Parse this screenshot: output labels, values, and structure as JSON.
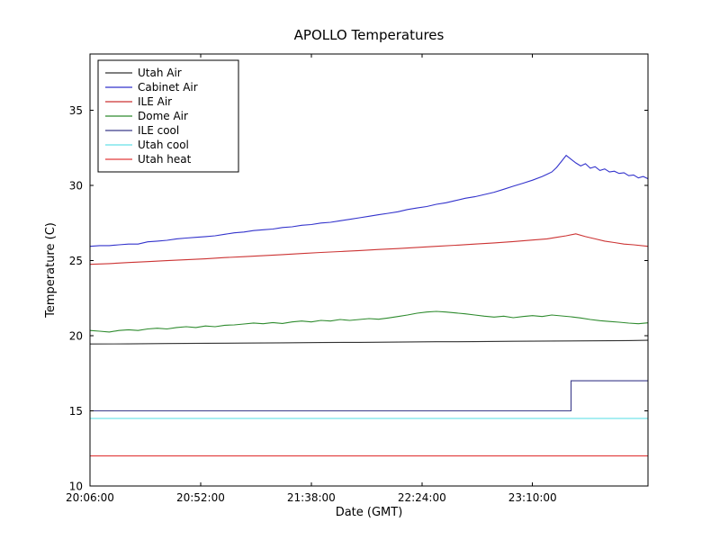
{
  "chart_data": {
    "type": "line",
    "title": "APOLLO Temperatures",
    "xlabel": "Date (GMT)",
    "ylabel": "Temperature (C)",
    "x_tick_labels": [
      "20:06:00",
      "20:52:00",
      "21:38:00",
      "22:24:00",
      "23:10:00"
    ],
    "x_tick_minutes": [
      0,
      46,
      92,
      138,
      184
    ],
    "xlim": [
      0,
      232
    ],
    "x_unit": "minutes since 20:06:00",
    "y_ticks": [
      10,
      15,
      20,
      25,
      30,
      35
    ],
    "ylim": [
      10,
      38.75
    ],
    "grid": false,
    "legend_position": "upper left",
    "background": "#ffffff",
    "frame_color": "#000000",
    "series": [
      {
        "name": "Utah Air",
        "color": "#333333",
        "x": [
          0,
          16,
          32,
          48,
          64,
          80,
          96,
          112,
          128,
          144,
          160,
          176,
          192,
          208,
          224,
          232
        ],
        "y": [
          19.45,
          19.46,
          19.48,
          19.5,
          19.51,
          19.53,
          19.55,
          19.56,
          19.58,
          19.6,
          19.61,
          19.63,
          19.65,
          19.66,
          19.68,
          19.7
        ]
      },
      {
        "name": "Cabinet Air",
        "color": "#3333cc",
        "x": [
          0,
          4,
          8,
          12,
          16,
          20,
          24,
          28,
          32,
          36,
          40,
          44,
          48,
          52,
          56,
          60,
          64,
          68,
          72,
          76,
          80,
          84,
          88,
          92,
          96,
          100,
          104,
          108,
          112,
          116,
          120,
          124,
          128,
          132,
          136,
          140,
          144,
          148,
          152,
          156,
          160,
          164,
          168,
          172,
          176,
          180,
          184,
          188,
          190,
          192,
          194,
          196,
          198,
          200,
          202,
          204,
          206,
          208,
          210,
          212,
          214,
          216,
          218,
          220,
          222,
          224,
          226,
          228,
          230,
          232
        ],
        "y": [
          25.95,
          26.0,
          26.0,
          26.05,
          26.1,
          26.1,
          26.25,
          26.3,
          26.35,
          26.45,
          26.5,
          26.55,
          26.6,
          26.65,
          26.75,
          26.85,
          26.9,
          27.0,
          27.05,
          27.1,
          27.2,
          27.25,
          27.35,
          27.4,
          27.5,
          27.55,
          27.65,
          27.75,
          27.85,
          27.95,
          28.05,
          28.15,
          28.25,
          28.4,
          28.5,
          28.6,
          28.75,
          28.85,
          29.0,
          29.15,
          29.25,
          29.4,
          29.55,
          29.75,
          29.95,
          30.15,
          30.35,
          30.6,
          30.75,
          30.9,
          31.2,
          31.6,
          32.0,
          31.75,
          31.5,
          31.3,
          31.45,
          31.15,
          31.25,
          31.0,
          31.1,
          30.9,
          30.95,
          30.8,
          30.85,
          30.65,
          30.7,
          30.5,
          30.6,
          30.45
        ]
      },
      {
        "name": "ILE Air",
        "color": "#cc3333",
        "x": [
          0,
          8,
          16,
          24,
          32,
          40,
          48,
          56,
          64,
          72,
          80,
          88,
          96,
          104,
          112,
          120,
          128,
          136,
          144,
          152,
          160,
          168,
          176,
          184,
          190,
          194,
          198,
          202,
          206,
          210,
          214,
          218,
          222,
          226,
          232
        ],
        "y": [
          24.75,
          24.8,
          24.87,
          24.93,
          25.0,
          25.06,
          25.12,
          25.2,
          25.26,
          25.33,
          25.4,
          25.47,
          25.54,
          25.6,
          25.67,
          25.74,
          25.8,
          25.88,
          25.95,
          26.02,
          26.1,
          26.18,
          26.27,
          26.37,
          26.45,
          26.55,
          26.65,
          26.78,
          26.6,
          26.45,
          26.3,
          26.2,
          26.1,
          26.05,
          25.95
        ]
      },
      {
        "name": "Dome Air",
        "color": "#2e8b2e",
        "x": [
          0,
          4,
          8,
          12,
          16,
          20,
          24,
          28,
          32,
          36,
          40,
          44,
          48,
          52,
          56,
          60,
          64,
          68,
          72,
          76,
          80,
          84,
          88,
          92,
          96,
          100,
          104,
          108,
          112,
          116,
          120,
          124,
          128,
          132,
          136,
          140,
          144,
          148,
          152,
          156,
          160,
          164,
          168,
          172,
          176,
          180,
          184,
          188,
          192,
          196,
          200,
          204,
          208,
          212,
          216,
          220,
          224,
          228,
          232
        ],
        "y": [
          20.35,
          20.3,
          20.25,
          20.35,
          20.4,
          20.35,
          20.45,
          20.5,
          20.45,
          20.55,
          20.6,
          20.55,
          20.65,
          20.6,
          20.7,
          20.72,
          20.78,
          20.85,
          20.8,
          20.88,
          20.82,
          20.92,
          20.98,
          20.92,
          21.02,
          20.98,
          21.08,
          21.02,
          21.08,
          21.14,
          21.1,
          21.18,
          21.28,
          21.38,
          21.5,
          21.58,
          21.62,
          21.58,
          21.52,
          21.46,
          21.38,
          21.3,
          21.24,
          21.3,
          21.2,
          21.28,
          21.34,
          21.28,
          21.38,
          21.32,
          21.26,
          21.18,
          21.08,
          21.0,
          20.95,
          20.9,
          20.84,
          20.8,
          20.86
        ]
      },
      {
        "name": "ILE cool",
        "color": "#3b3b8a",
        "x": [
          0,
          200,
          200,
          232
        ],
        "y": [
          15.0,
          15.0,
          17.0,
          17.0
        ]
      },
      {
        "name": "Utah cool",
        "color": "#66e0e8",
        "x": [
          0,
          232
        ],
        "y": [
          14.5,
          14.5
        ]
      },
      {
        "name": "Utah heat",
        "color": "#e23b3b",
        "x": [
          0,
          232
        ],
        "y": [
          12.0,
          12.0
        ]
      }
    ]
  }
}
